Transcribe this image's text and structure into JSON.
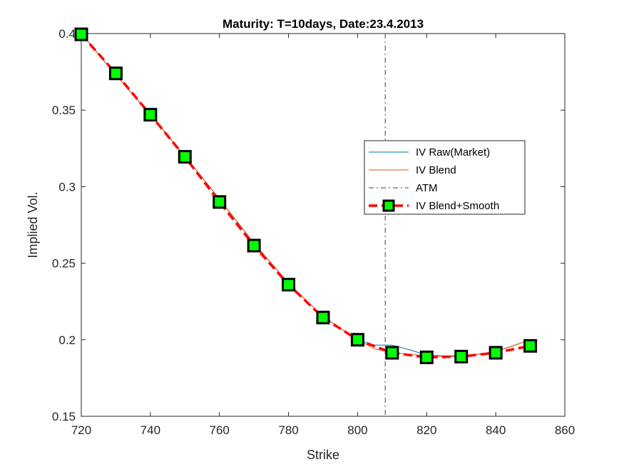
{
  "chart_data": {
    "type": "line",
    "title": "Maturity: T=10days, Date:23.4.2013",
    "xlabel": "Strike",
    "ylabel": "Implied Vol.",
    "xlim": [
      720,
      860
    ],
    "ylim": [
      0.15,
      0.4
    ],
    "xticks": [
      720,
      740,
      760,
      780,
      800,
      820,
      840,
      860
    ],
    "yticks": [
      0.15,
      0.2,
      0.25,
      0.3,
      0.35,
      0.4
    ],
    "ytick_labels": [
      "0.15",
      "0.2",
      "0.25",
      "0.3",
      "0.35",
      "0.4"
    ],
    "grid": false,
    "legend_position": "right",
    "atm_strike": 808,
    "series": [
      {
        "name": "IV Raw(Market)",
        "color": "#0072BD",
        "style": "solid",
        "x": [
          720,
          730,
          740,
          750,
          760,
          770,
          780,
          790,
          800,
          805,
          810,
          815,
          820,
          825,
          830,
          835,
          840,
          845,
          850
        ],
        "y": [
          0.4,
          0.373,
          0.347,
          0.32,
          0.292,
          0.263,
          0.237,
          0.215,
          0.2,
          0.1965,
          0.1965,
          0.1935,
          0.19,
          0.1895,
          0.1895,
          0.1905,
          0.1925,
          0.196,
          0.2
        ]
      },
      {
        "name": "IV Blend",
        "color": "#D95319",
        "style": "solid",
        "x": [
          720,
          730,
          740,
          750,
          760,
          770,
          780,
          790,
          800,
          805,
          810,
          815,
          820,
          825,
          830,
          835,
          840,
          845,
          850
        ],
        "y": [
          0.4,
          0.373,
          0.347,
          0.32,
          0.292,
          0.263,
          0.237,
          0.215,
          0.2,
          0.194,
          0.1915,
          0.1905,
          0.1895,
          0.189,
          0.189,
          0.1905,
          0.1925,
          0.196,
          0.2
        ]
      },
      {
        "name": "ATM",
        "color": "#404040",
        "style": "dash-dot"
      },
      {
        "name": "IV Blend+Smooth",
        "color": "#FF0000",
        "marker_color": "#00FF00",
        "style": "dashed",
        "x": [
          720,
          730,
          740,
          750,
          760,
          770,
          780,
          790,
          800,
          810,
          820,
          830,
          840,
          850
        ],
        "y": [
          0.3995,
          0.374,
          0.347,
          0.3195,
          0.29,
          0.2615,
          0.236,
          0.2145,
          0.2,
          0.1915,
          0.1885,
          0.189,
          0.1915,
          0.196
        ]
      }
    ]
  }
}
